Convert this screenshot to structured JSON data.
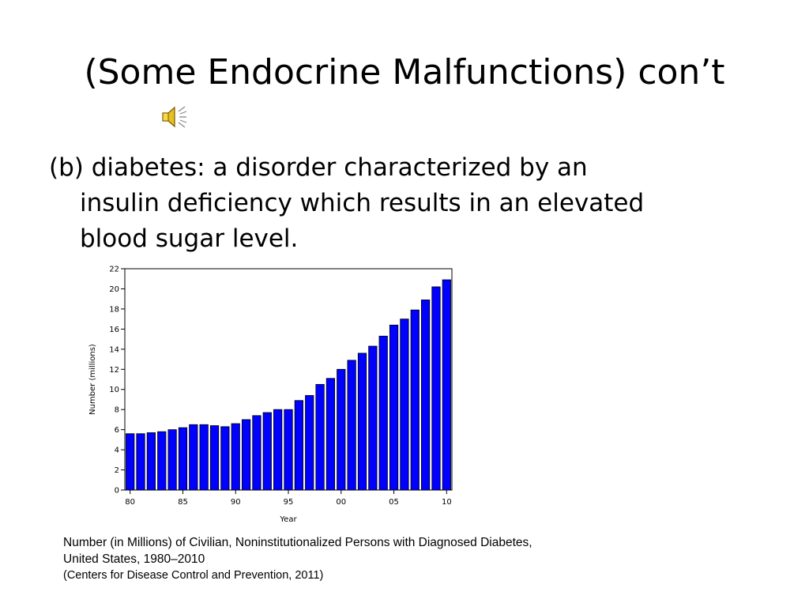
{
  "slide": {
    "title": "(Some Endocrine Malfunctions) con’t",
    "bullet_line1": "(b) diabetes: a disorder characterized by an",
    "bullet_line2": "insulin deficiency which results in an elevated",
    "bullet_line3": "blood sugar level.",
    "speaker_icon": "speaker-icon"
  },
  "caption": {
    "line1": "Number (in Millions) of Civilian, Noninstitutionalized Persons with Diagnosed Diabetes,",
    "line2": "United States, 1980–2010",
    "source": "(Centers for Disease Control and Prevention, 2011)"
  },
  "chart_data": {
    "type": "bar",
    "xlabel": "Year",
    "ylabel": "Number (millions)",
    "ylim": [
      0,
      22
    ],
    "yticks": [
      "0",
      "2",
      "4",
      "6",
      "8",
      "10",
      "12",
      "14",
      "16",
      "18",
      "20",
      "22"
    ],
    "xticks": [
      "80",
      "85",
      "90",
      "95",
      "00",
      "05",
      "10"
    ],
    "grid": false,
    "bar_color": "#0000ff",
    "categories": [
      1980,
      1981,
      1982,
      1983,
      1984,
      1985,
      1986,
      1987,
      1988,
      1989,
      1990,
      1991,
      1992,
      1993,
      1994,
      1995,
      1996,
      1997,
      1998,
      1999,
      2000,
      2001,
      2002,
      2003,
      2004,
      2005,
      2006,
      2007,
      2008,
      2009,
      2010
    ],
    "values": [
      5.6,
      5.6,
      5.7,
      5.8,
      6.0,
      6.2,
      6.5,
      6.5,
      6.4,
      6.3,
      6.6,
      7.0,
      7.4,
      7.7,
      8.0,
      8.0,
      8.9,
      9.4,
      10.5,
      11.1,
      12.0,
      12.9,
      13.6,
      14.3,
      15.3,
      16.4,
      17.0,
      17.9,
      18.9,
      20.2,
      20.9
    ]
  }
}
